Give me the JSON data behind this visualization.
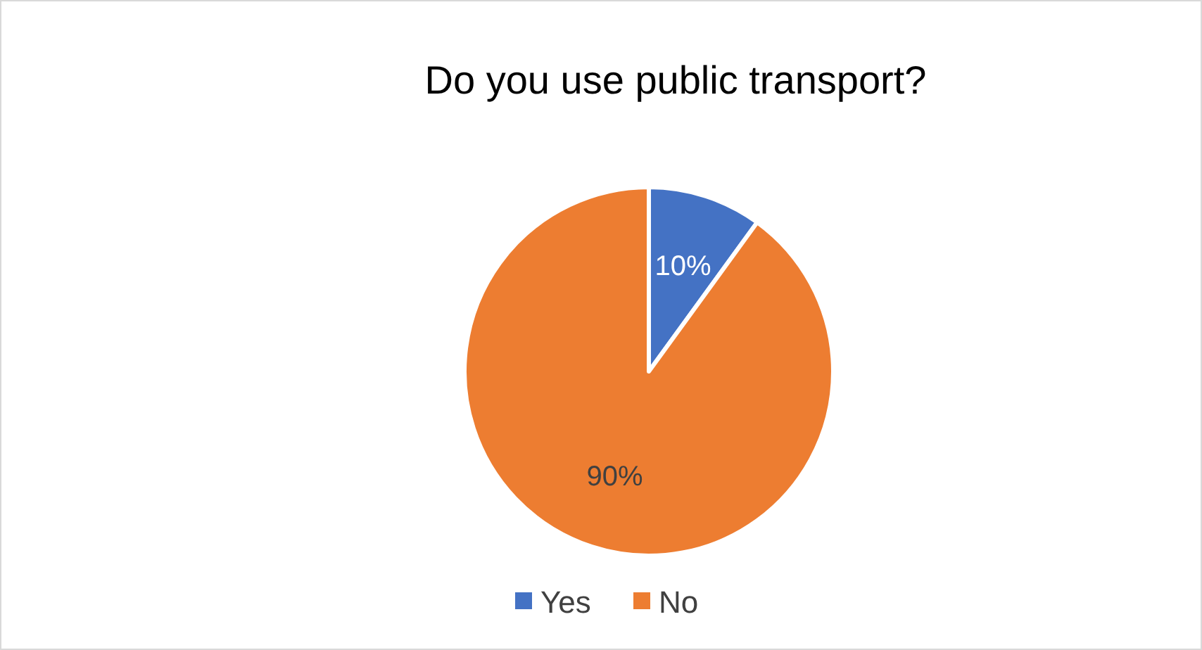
{
  "chart_data": {
    "type": "pie",
    "title": "Do you use public transport?",
    "categories": [
      "Yes",
      "No"
    ],
    "values": [
      10,
      90
    ],
    "colors": [
      "#4472c4",
      "#ed7d31"
    ],
    "value_labels": [
      "10%",
      "90%"
    ],
    "legend": "bottom"
  }
}
